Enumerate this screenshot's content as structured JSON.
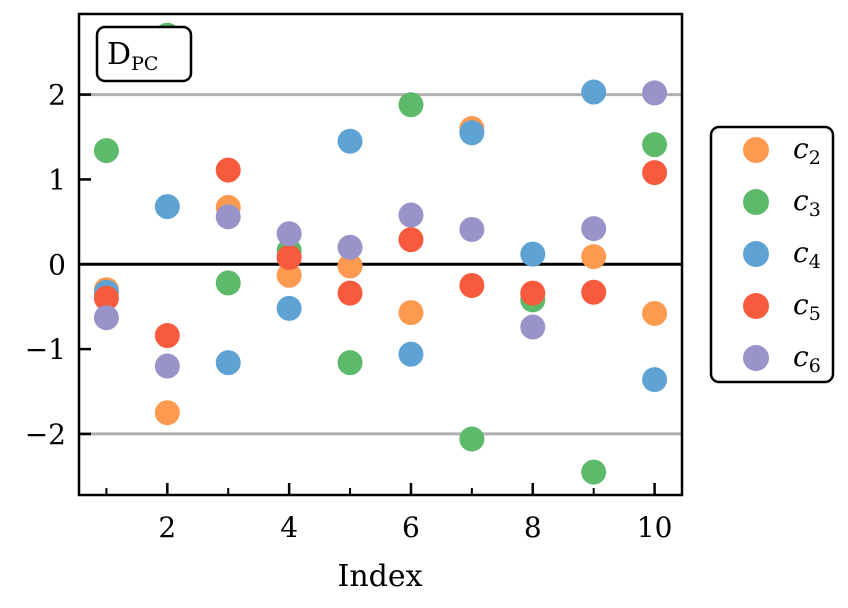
{
  "chart_data": {
    "type": "scatter",
    "xlabel": "Index",
    "ylabel": "",
    "xlim": [
      0.55,
      10.45
    ],
    "ylim": [
      -2.72,
      2.95
    ],
    "xticks_major": [
      2,
      4,
      6,
      8,
      10
    ],
    "xticks_minor": [
      1,
      3,
      5,
      7,
      9
    ],
    "yticks": [
      -2,
      -1,
      0,
      1,
      2
    ],
    "ytick_labels": [
      "−2",
      "−1",
      "0",
      "1",
      "2"
    ],
    "reference_lines": {
      "solid_black": [
        0
      ],
      "solid_gray": [
        2,
        -2
      ],
      "gray_color": "#b0b0b0"
    },
    "annotation": {
      "text": "D",
      "subscript": "PC",
      "placement": "top-left"
    },
    "legend_placement": "outside-right",
    "x": [
      1,
      2,
      3,
      4,
      5,
      6,
      7,
      8,
      9,
      10
    ],
    "series": [
      {
        "name": "c",
        "sub": "2",
        "color": "#fd9a4f",
        "values": [
          -0.3,
          -1.75,
          0.67,
          -0.13,
          -0.02,
          -0.57,
          1.6,
          -0.35,
          0.09,
          -0.58
        ]
      },
      {
        "name": "c",
        "sub": "3",
        "color": "#5eba6b",
        "values": [
          1.34,
          2.7,
          -0.22,
          0.16,
          -1.16,
          1.88,
          -2.06,
          -0.42,
          -2.45,
          1.41
        ]
      },
      {
        "name": "c",
        "sub": "4",
        "color": "#5ea3d4",
        "values": [
          -0.33,
          0.68,
          -1.16,
          -0.52,
          1.45,
          -1.06,
          1.55,
          0.12,
          2.03,
          -1.36
        ]
      },
      {
        "name": "c",
        "sub": "5",
        "color": "#f85a3e",
        "values": [
          -0.4,
          -0.84,
          1.11,
          0.08,
          -0.34,
          0.29,
          -0.25,
          -0.34,
          -0.33,
          1.08
        ]
      },
      {
        "name": "c",
        "sub": "6",
        "color": "#9893c8",
        "values": [
          -0.63,
          -1.2,
          0.56,
          0.36,
          0.2,
          0.58,
          0.41,
          -0.74,
          0.42,
          2.02
        ]
      }
    ]
  }
}
